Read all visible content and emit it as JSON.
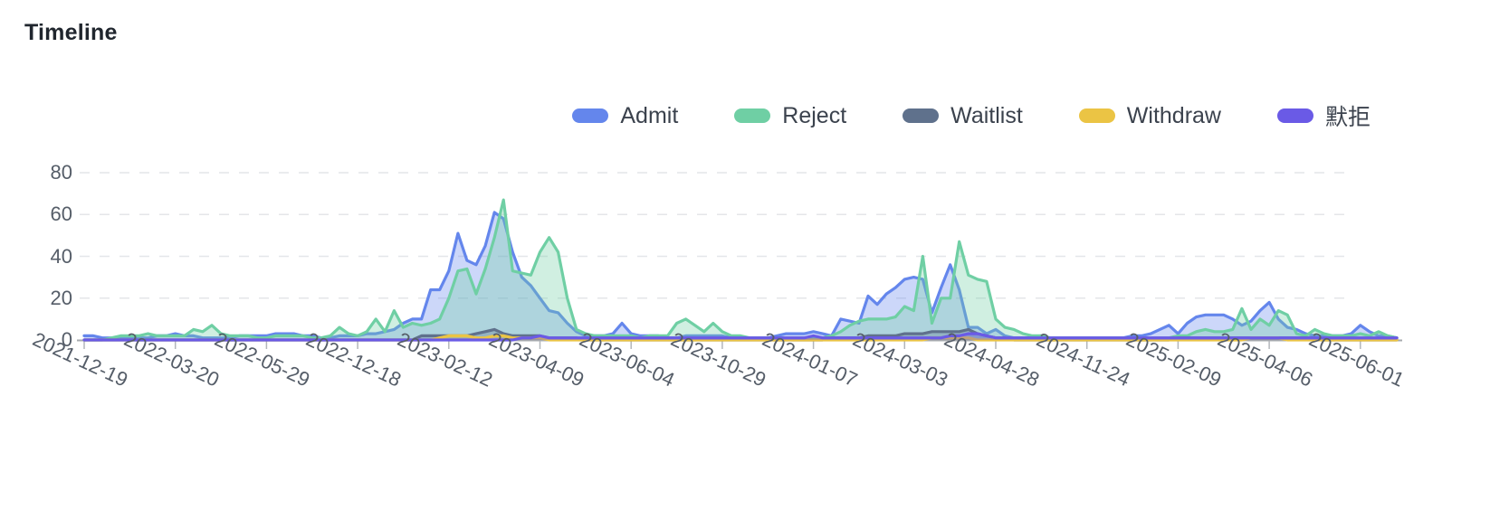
{
  "chart_data": {
    "type": "area",
    "title": "Timeline",
    "grid": "horizontal-dashed",
    "legend_position": "top-right",
    "ylim": [
      0,
      80
    ],
    "y_ticks": [
      0,
      20,
      40,
      60,
      80
    ],
    "x_tick_every": 10,
    "x_tick_labels": [
      "2021-12-19",
      "2022-03-20",
      "2022-05-29",
      "2022-12-18",
      "2023-02-12",
      "2023-04-09",
      "2023-06-04",
      "2023-10-29",
      "2024-01-07",
      "2024-03-03",
      "2024-04-28",
      "2024-11-24",
      "2025-02-09",
      "2025-04-06",
      "2025-06-01"
    ],
    "x_unit": "week",
    "series": [
      {
        "id": "admit",
        "name": "Admit",
        "color": "#6486EC",
        "values": [
          2,
          2,
          1,
          1,
          1,
          1,
          1,
          1,
          2,
          2,
          3,
          2,
          2,
          1,
          1,
          1,
          1,
          2,
          2,
          2,
          2,
          3,
          3,
          3,
          2,
          2,
          1,
          1,
          2,
          2,
          2,
          3,
          3,
          4,
          5,
          8,
          10,
          10,
          24,
          24,
          33,
          51,
          38,
          36,
          45,
          61,
          58,
          42,
          30,
          26,
          20,
          14,
          13,
          8,
          4,
          2,
          2,
          2,
          3,
          8,
          3,
          2,
          2,
          2,
          1,
          1,
          2,
          2,
          2,
          2,
          2,
          1,
          1,
          1,
          1,
          1,
          2,
          3,
          3,
          3,
          4,
          3,
          2,
          10,
          9,
          8,
          21,
          17,
          22,
          25,
          29,
          30,
          29,
          13,
          25,
          36,
          24,
          6,
          6,
          3,
          5,
          2,
          1,
          1,
          1,
          1,
          1,
          1,
          1,
          1,
          1,
          1,
          1,
          1,
          1,
          2,
          2,
          3,
          5,
          7,
          3,
          8,
          11,
          12,
          12,
          12,
          10,
          7,
          9,
          14,
          18,
          10,
          6,
          5,
          3,
          2,
          2,
          2,
          2,
          3,
          7,
          4,
          2,
          2,
          1
        ]
      },
      {
        "id": "reject",
        "name": "Reject",
        "color": "#6FCFA4",
        "values": [
          0,
          0,
          0,
          1,
          2,
          2,
          2,
          3,
          2,
          2,
          2,
          2,
          5,
          4,
          7,
          3,
          2,
          2,
          2,
          1,
          1,
          2,
          2,
          2,
          2,
          1,
          1,
          2,
          6,
          3,
          2,
          4,
          10,
          4,
          14,
          6,
          8,
          7,
          8,
          10,
          20,
          33,
          34,
          22,
          34,
          49,
          67,
          33,
          32,
          31,
          42,
          49,
          42,
          20,
          5,
          3,
          2,
          2,
          2,
          2,
          2,
          1,
          2,
          2,
          2,
          8,
          10,
          7,
          4,
          8,
          4,
          2,
          2,
          1,
          1,
          1,
          1,
          1,
          1,
          1,
          1,
          1,
          2,
          4,
          7,
          9,
          10,
          10,
          10,
          11,
          16,
          14,
          40,
          8,
          20,
          20,
          47,
          31,
          29,
          28,
          10,
          6,
          5,
          3,
          2,
          2,
          1,
          1,
          1,
          1,
          1,
          1,
          1,
          1,
          1,
          1,
          1,
          1,
          1,
          1,
          2,
          2,
          4,
          5,
          4,
          4,
          5,
          15,
          5,
          10,
          7,
          14,
          12,
          3,
          2,
          5,
          3,
          2,
          2,
          2,
          3,
          2,
          4,
          2,
          1
        ]
      },
      {
        "id": "waitlist",
        "name": "Waitlist",
        "color": "#5F718C",
        "values": [
          0,
          0,
          0,
          0,
          0,
          0,
          0,
          0,
          0,
          0,
          0,
          0,
          0,
          0,
          0,
          0,
          0,
          0,
          0,
          0,
          0,
          0,
          0,
          0,
          0,
          0,
          0,
          0,
          0,
          0,
          0,
          0,
          0,
          0,
          0,
          0,
          0,
          2,
          2,
          2,
          2,
          2,
          2,
          3,
          4,
          5,
          3,
          2,
          2,
          2,
          2,
          1,
          1,
          1,
          1,
          0,
          0,
          0,
          0,
          0,
          0,
          0,
          0,
          0,
          0,
          0,
          0,
          0,
          0,
          0,
          0,
          0,
          0,
          0,
          0,
          0,
          0,
          0,
          0,
          0,
          0,
          0,
          1,
          1,
          1,
          1,
          2,
          2,
          2,
          2,
          3,
          3,
          3,
          4,
          4,
          4,
          4,
          5,
          3,
          2,
          1,
          1,
          0,
          0,
          0,
          0,
          0,
          0,
          0,
          0,
          0,
          0,
          0,
          0,
          0,
          0,
          0,
          0,
          0,
          0,
          1,
          1,
          1,
          1,
          1,
          1,
          1,
          1,
          1,
          1,
          1,
          1,
          1,
          1,
          1,
          1,
          0,
          0,
          0,
          0,
          0,
          0,
          0,
          0,
          0
        ]
      },
      {
        "id": "withdraw",
        "name": "Withdraw",
        "color": "#EBC444",
        "values": [
          0,
          0,
          0,
          0,
          0,
          0,
          0,
          0,
          0,
          0,
          0,
          0,
          0,
          0,
          0,
          0,
          0,
          0,
          0,
          0,
          0,
          0,
          0,
          0,
          0,
          0,
          0,
          0,
          0,
          0,
          0,
          0,
          0,
          0,
          0,
          0,
          0,
          0,
          0,
          1,
          2,
          2,
          2,
          1,
          1,
          2,
          2,
          1,
          1,
          1,
          1,
          0,
          0,
          0,
          0,
          0,
          0,
          0,
          0,
          0,
          0,
          0,
          0,
          0,
          0,
          0,
          0,
          0,
          0,
          0,
          0,
          0,
          0,
          0,
          0,
          0,
          0,
          0,
          0,
          0,
          0,
          0,
          0,
          0,
          0,
          0,
          0,
          0,
          0,
          0,
          0,
          0,
          0,
          1,
          1,
          1,
          1,
          1,
          0,
          0,
          0,
          0,
          0,
          0,
          0,
          0,
          0,
          0,
          0,
          0,
          0,
          0,
          0,
          0,
          0,
          0,
          0,
          0,
          0,
          0,
          0,
          0,
          0,
          0,
          0,
          0,
          0,
          0,
          1,
          1,
          1,
          1,
          0,
          0,
          0,
          0,
          0,
          0,
          0,
          0,
          0,
          0,
          0,
          0,
          0
        ]
      },
      {
        "id": "moju",
        "name": "默拒",
        "color": "#6A5AE6",
        "values": [
          0,
          0,
          0,
          0,
          0,
          0,
          0,
          0,
          0,
          0,
          0,
          0,
          0,
          0,
          0,
          0,
          0,
          0,
          0,
          0,
          0,
          0,
          0,
          0,
          0,
          0,
          0,
          0,
          0,
          0,
          0,
          0,
          0,
          0,
          0,
          0,
          0,
          0,
          0,
          0,
          0,
          0,
          0,
          0,
          0,
          0,
          0,
          0,
          1,
          1,
          2,
          1,
          1,
          1,
          1,
          1,
          1,
          1,
          1,
          1,
          1,
          1,
          1,
          1,
          1,
          1,
          1,
          1,
          1,
          1,
          1,
          1,
          1,
          1,
          1,
          1,
          1,
          1,
          1,
          1,
          2,
          1,
          1,
          1,
          1,
          1,
          1,
          1,
          1,
          1,
          1,
          1,
          1,
          1,
          1,
          2,
          2,
          3,
          3,
          2,
          1,
          1,
          1,
          1,
          1,
          1,
          1,
          1,
          1,
          1,
          1,
          1,
          1,
          1,
          1,
          1,
          1,
          1,
          1,
          1,
          1,
          1,
          1,
          1,
          1,
          1,
          1,
          1,
          1,
          1,
          1,
          1,
          1,
          1,
          1,
          1,
          1,
          1,
          1,
          1,
          1,
          1,
          1,
          1,
          1
        ]
      }
    ]
  }
}
